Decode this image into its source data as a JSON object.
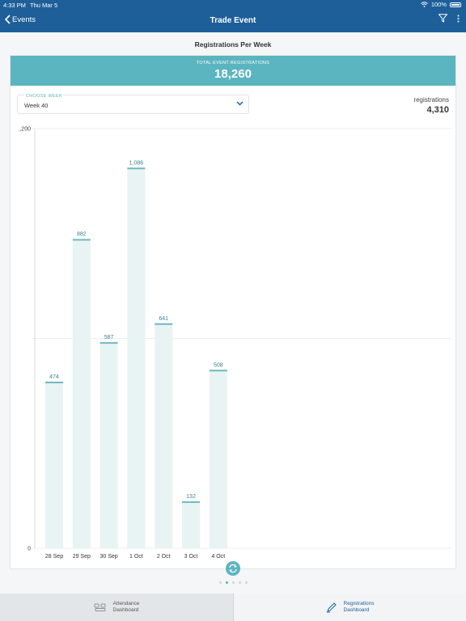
{
  "status": {
    "time": "4:33 PM",
    "date": "Thu Mar 5",
    "battery": "100%"
  },
  "nav": {
    "back_label": "Events",
    "title": "Trade Event"
  },
  "page": {
    "title": "Registrations Per Week"
  },
  "total": {
    "label": "TOTAL EVENT REGISTRATIONS",
    "value": "18,260"
  },
  "week_select": {
    "label": "CHOOSE WEEK",
    "value": "Week 40"
  },
  "week_total": {
    "label": "registrations",
    "value": "4,310"
  },
  "colors": {
    "nav": "#1e5f9a",
    "accent": "#5bb5c0",
    "bar_fill": "#e8f3f4",
    "bar_cap": "#6fb8c1"
  },
  "chart_data": {
    "type": "bar",
    "categories": [
      "28 Sep",
      "29 Sep",
      "30 Sep",
      "1 Oct",
      "2 Oct",
      "3 Oct",
      "4 Oct"
    ],
    "values": [
      474,
      882,
      587,
      1086,
      641,
      132,
      508
    ],
    "value_labels": [
      "474",
      "882",
      "587",
      "1,086",
      "641",
      "132",
      "508"
    ],
    "ylim": [
      0,
      1200
    ],
    "yticks": [
      "0",
      "1,200"
    ],
    "grid": true
  },
  "pager": {
    "count": 5,
    "active": 1
  },
  "tabs": {
    "attendance": {
      "line1": "Attendance",
      "line2": "Dashboard"
    },
    "registrations": {
      "line1": "Registrations",
      "line2": "Dashboard"
    }
  }
}
